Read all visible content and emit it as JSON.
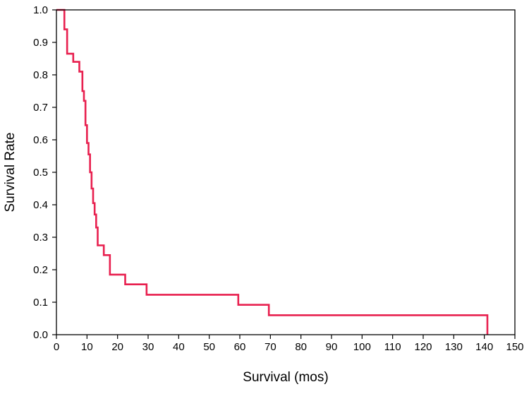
{
  "colors": {
    "background": "#ffffff",
    "axis": "#000000",
    "series": "#e8204f"
  },
  "chart_data": {
    "type": "line",
    "style": "step",
    "xlabel": "Survival (mos)",
    "ylabel": "Survival Rate",
    "xlim": [
      0,
      150
    ],
    "ylim": [
      0.0,
      1.0
    ],
    "xticks": [
      "0",
      "10",
      "20",
      "30",
      "40",
      "50",
      "60",
      "70",
      "80",
      "90",
      "100",
      "110",
      "120",
      "130",
      "140",
      "150"
    ],
    "yticks": [
      "0.0",
      "0.1",
      "0.2",
      "0.3",
      "0.4",
      "0.5",
      "0.6",
      "0.7",
      "0.8",
      "0.9",
      "1.0"
    ],
    "grid": false,
    "series": [
      {
        "x": [
          0,
          2,
          2.6,
          3.5,
          5.5,
          7.5,
          8.5,
          9.0,
          9.5,
          10.0,
          10.5,
          11.0,
          11.5,
          12.0,
          12.5,
          13.0,
          13.5,
          15.5,
          17.5,
          22.5,
          29.5,
          59.5,
          69.5,
          141
        ],
        "y": [
          1.0,
          1.0,
          0.94,
          0.865,
          0.84,
          0.81,
          0.75,
          0.72,
          0.645,
          0.59,
          0.555,
          0.5,
          0.45,
          0.405,
          0.37,
          0.33,
          0.275,
          0.245,
          0.185,
          0.155,
          0.123,
          0.092,
          0.06,
          0.03
        ],
        "end": 141,
        "end_y": 0.0
      }
    ]
  }
}
